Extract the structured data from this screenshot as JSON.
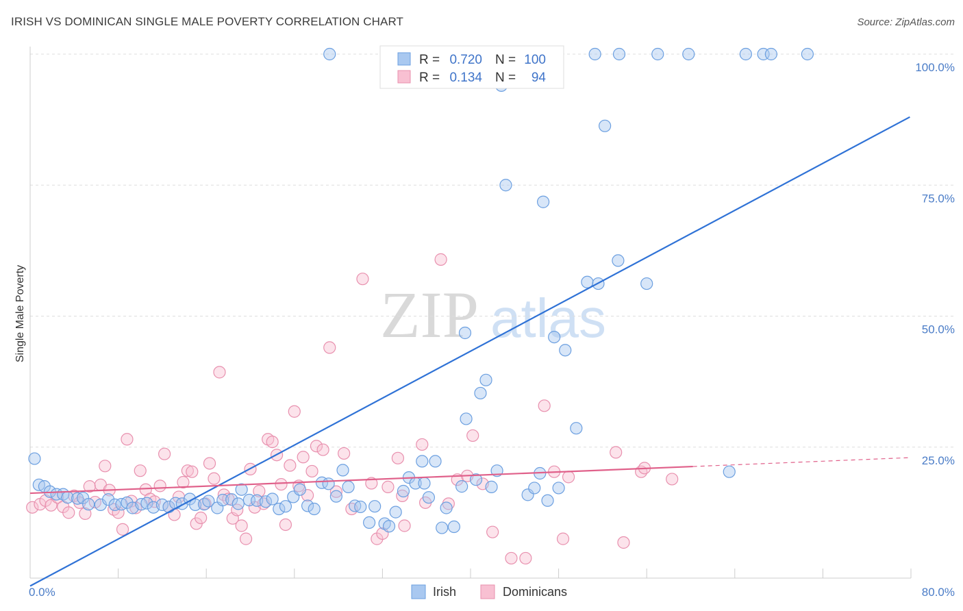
{
  "title": "IRISH VS DOMINICAN SINGLE MALE POVERTY CORRELATION CHART",
  "source": "Source: ZipAtlas.com",
  "watermark": {
    "part1": "ZIP",
    "part2": "atlas"
  },
  "legend": {
    "r_label": "R =",
    "n_label": "N =",
    "irish": {
      "r": "0.720",
      "n": "100"
    },
    "dominican": {
      "r": "0.134",
      "n": "94"
    }
  },
  "colors": {
    "irish_fill": "#a9c8f0",
    "irish_stroke": "#6b9fe0",
    "irish_line": "#2f72d6",
    "dominican_fill": "#f8c0d2",
    "dominican_stroke": "#e890ae",
    "dominican_line": "#e0608a",
    "tick_text": "#4a7cc7",
    "grid": "#dddddd"
  },
  "chart_data": {
    "type": "scatter",
    "xlabel": "",
    "ylabel": "Single Male Poverty",
    "xlim": [
      0,
      80
    ],
    "ylim": [
      0,
      100
    ],
    "x_tick_labels": [
      "0.0%",
      "80.0%"
    ],
    "y_tick_labels": [
      "25.0%",
      "50.0%",
      "75.0%",
      "100.0%"
    ],
    "y_tick_values": [
      25,
      50,
      75,
      100
    ],
    "grid": "horizontal dashed",
    "legend_position": "top-center",
    "series": [
      {
        "name": "Irish",
        "trend": {
          "x": [
            0,
            79.9
          ],
          "y": [
            -1.5,
            88
          ]
        },
        "points": [
          [
            0.4,
            22.8
          ],
          [
            0.8,
            17.8
          ],
          [
            1.3,
            17.5
          ],
          [
            1.8,
            16.5
          ],
          [
            2.4,
            16
          ],
          [
            3,
            16
          ],
          [
            3.4,
            15.4
          ],
          [
            4.3,
            15.2
          ],
          [
            4.8,
            15.3
          ],
          [
            5.3,
            14.1
          ],
          [
            6.4,
            14
          ],
          [
            7.1,
            15
          ],
          [
            7.7,
            14
          ],
          [
            8.3,
            14.1
          ],
          [
            8.8,
            14.4
          ],
          [
            9.3,
            13.4
          ],
          [
            10.1,
            14.1
          ],
          [
            10.6,
            14.3
          ],
          [
            11.2,
            13.5
          ],
          [
            12,
            14
          ],
          [
            12.6,
            13.6
          ],
          [
            13.2,
            14.3
          ],
          [
            13.8,
            14.2
          ],
          [
            14.5,
            15.1
          ],
          [
            15,
            14
          ],
          [
            15.8,
            14.1
          ],
          [
            16.2,
            14.7
          ],
          [
            17,
            13.4
          ],
          [
            17.5,
            14.9
          ],
          [
            18.3,
            15
          ],
          [
            18.9,
            14.2
          ],
          [
            19.2,
            16.9
          ],
          [
            19.9,
            14.9
          ],
          [
            20.6,
            14.8
          ],
          [
            21.4,
            14.6
          ],
          [
            22,
            15.1
          ],
          [
            22.6,
            13.2
          ],
          [
            23.2,
            13.7
          ],
          [
            23.9,
            15.5
          ],
          [
            24.5,
            16.9
          ],
          [
            25.2,
            13.8
          ],
          [
            25.8,
            13.2
          ],
          [
            26.5,
            18.2
          ],
          [
            27.1,
            18
          ],
          [
            27.8,
            15.6
          ],
          [
            28.4,
            20.6
          ],
          [
            28.9,
            17.4
          ],
          [
            29.5,
            13.8
          ],
          [
            30,
            13.6
          ],
          [
            30.8,
            10.6
          ],
          [
            31.3,
            13.7
          ],
          [
            32.2,
            10.4
          ],
          [
            32.6,
            9.9
          ],
          [
            33.2,
            12.6
          ],
          [
            33.9,
            16.6
          ],
          [
            34.4,
            19.2
          ],
          [
            35,
            18.1
          ],
          [
            35.6,
            22.3
          ],
          [
            35.8,
            18.1
          ],
          [
            36.2,
            15.4
          ],
          [
            36.8,
            22.3
          ],
          [
            37.4,
            9.6
          ],
          [
            37.8,
            13.4
          ],
          [
            38.5,
            9.8
          ],
          [
            39.2,
            17.5
          ],
          [
            39.5,
            46.8
          ],
          [
            39.6,
            30.4
          ],
          [
            40.5,
            18.8
          ],
          [
            40.9,
            35.3
          ],
          [
            41.4,
            37.8
          ],
          [
            41.9,
            17.4
          ],
          [
            42.4,
            20.5
          ],
          [
            42.8,
            94
          ],
          [
            43.2,
            75
          ],
          [
            45.2,
            15.9
          ],
          [
            45.8,
            17.2
          ],
          [
            46.3,
            20
          ],
          [
            46.6,
            71.8
          ],
          [
            47,
            14.8
          ],
          [
            47.6,
            46
          ],
          [
            48,
            17.2
          ],
          [
            48.6,
            43.5
          ],
          [
            49.6,
            28.6
          ],
          [
            50.6,
            56.5
          ],
          [
            51.6,
            56.2
          ],
          [
            52.2,
            86.3
          ],
          [
            53.4,
            60.6
          ],
          [
            56,
            56.2
          ],
          [
            51.3,
            100
          ],
          [
            53.5,
            100
          ],
          [
            57,
            100
          ],
          [
            59.8,
            100
          ],
          [
            63.5,
            20.3
          ],
          [
            65,
            100
          ],
          [
            66.6,
            100
          ],
          [
            67.3,
            100
          ],
          [
            70.6,
            100
          ],
          [
            44.2,
            100
          ],
          [
            38.4,
            100
          ],
          [
            27.2,
            100
          ]
        ]
      },
      {
        "name": "Dominicans",
        "trend": {
          "x": [
            0,
            60.2
          ],
          "y": [
            16.2,
            21.3
          ]
        },
        "trend_dashed": {
          "x": [
            60.2,
            80
          ],
          "y": [
            21.3,
            23
          ]
        },
        "points": [
          [
            0.2,
            13.5
          ],
          [
            0.9,
            14.1
          ],
          [
            1.4,
            14.8
          ],
          [
            1.9,
            13.9
          ],
          [
            2.5,
            15.4
          ],
          [
            3,
            13.6
          ],
          [
            3.5,
            12.5
          ],
          [
            4,
            15.7
          ],
          [
            4.5,
            14.4
          ],
          [
            5,
            12.3
          ],
          [
            5.4,
            17.5
          ],
          [
            5.9,
            14.5
          ],
          [
            6.4,
            17.8
          ],
          [
            6.8,
            21.4
          ],
          [
            7.2,
            16.8
          ],
          [
            7.6,
            13.1
          ],
          [
            8,
            12.5
          ],
          [
            8.4,
            9.3
          ],
          [
            8.8,
            26.5
          ],
          [
            9.2,
            14.7
          ],
          [
            9.6,
            13.4
          ],
          [
            10,
            20.5
          ],
          [
            10.5,
            16.9
          ],
          [
            10.9,
            15.1
          ],
          [
            11.3,
            14.6
          ],
          [
            11.8,
            17.6
          ],
          [
            12.2,
            23.7
          ],
          [
            12.6,
            13.6
          ],
          [
            13.1,
            12.1
          ],
          [
            13.5,
            15.5
          ],
          [
            13.9,
            18.3
          ],
          [
            14.3,
            20.5
          ],
          [
            14.7,
            20.3
          ],
          [
            15.1,
            10.4
          ],
          [
            15.5,
            11.5
          ],
          [
            15.9,
            14.2
          ],
          [
            16.3,
            21.9
          ],
          [
            16.7,
            19
          ],
          [
            17.2,
            39.3
          ],
          [
            17.6,
            15.9
          ],
          [
            18,
            15.1
          ],
          [
            18.4,
            11.4
          ],
          [
            18.8,
            13
          ],
          [
            19.2,
            10
          ],
          [
            19.6,
            7.5
          ],
          [
            20,
            20.8
          ],
          [
            20.4,
            13.5
          ],
          [
            20.8,
            16.6
          ],
          [
            21.2,
            14.2
          ],
          [
            21.6,
            26.5
          ],
          [
            22,
            26
          ],
          [
            22.4,
            23.5
          ],
          [
            22.8,
            17.9
          ],
          [
            23.2,
            10.2
          ],
          [
            23.6,
            21.5
          ],
          [
            24,
            31.8
          ],
          [
            24.4,
            17.6
          ],
          [
            24.8,
            23.1
          ],
          [
            25.2,
            15.8
          ],
          [
            25.6,
            20.4
          ],
          [
            26,
            25.2
          ],
          [
            26.6,
            24.5
          ],
          [
            27.2,
            44
          ],
          [
            27.8,
            16.5
          ],
          [
            28.5,
            23.8
          ],
          [
            29.2,
            13.2
          ],
          [
            30.2,
            57.1
          ],
          [
            31,
            18.1
          ],
          [
            31.5,
            7.5
          ],
          [
            32,
            8.5
          ],
          [
            32.5,
            17.4
          ],
          [
            33.4,
            22.9
          ],
          [
            33.8,
            15.7
          ],
          [
            34,
            10
          ],
          [
            35.6,
            25.5
          ],
          [
            35.9,
            14.4
          ],
          [
            37.3,
            60.8
          ],
          [
            38,
            14.2
          ],
          [
            38.8,
            18.8
          ],
          [
            39.7,
            19.5
          ],
          [
            40.2,
            27.2
          ],
          [
            41.1,
            18
          ],
          [
            42,
            8.8
          ],
          [
            43.7,
            3.8
          ],
          [
            45,
            3.8
          ],
          [
            46.7,
            32.9
          ],
          [
            47.6,
            20.3
          ],
          [
            48.4,
            7.5
          ],
          [
            48.9,
            19.3
          ],
          [
            53.2,
            24
          ],
          [
            53.9,
            6.8
          ],
          [
            55.5,
            20.3
          ],
          [
            55.8,
            21
          ],
          [
            58.3,
            18.9
          ]
        ]
      }
    ]
  }
}
